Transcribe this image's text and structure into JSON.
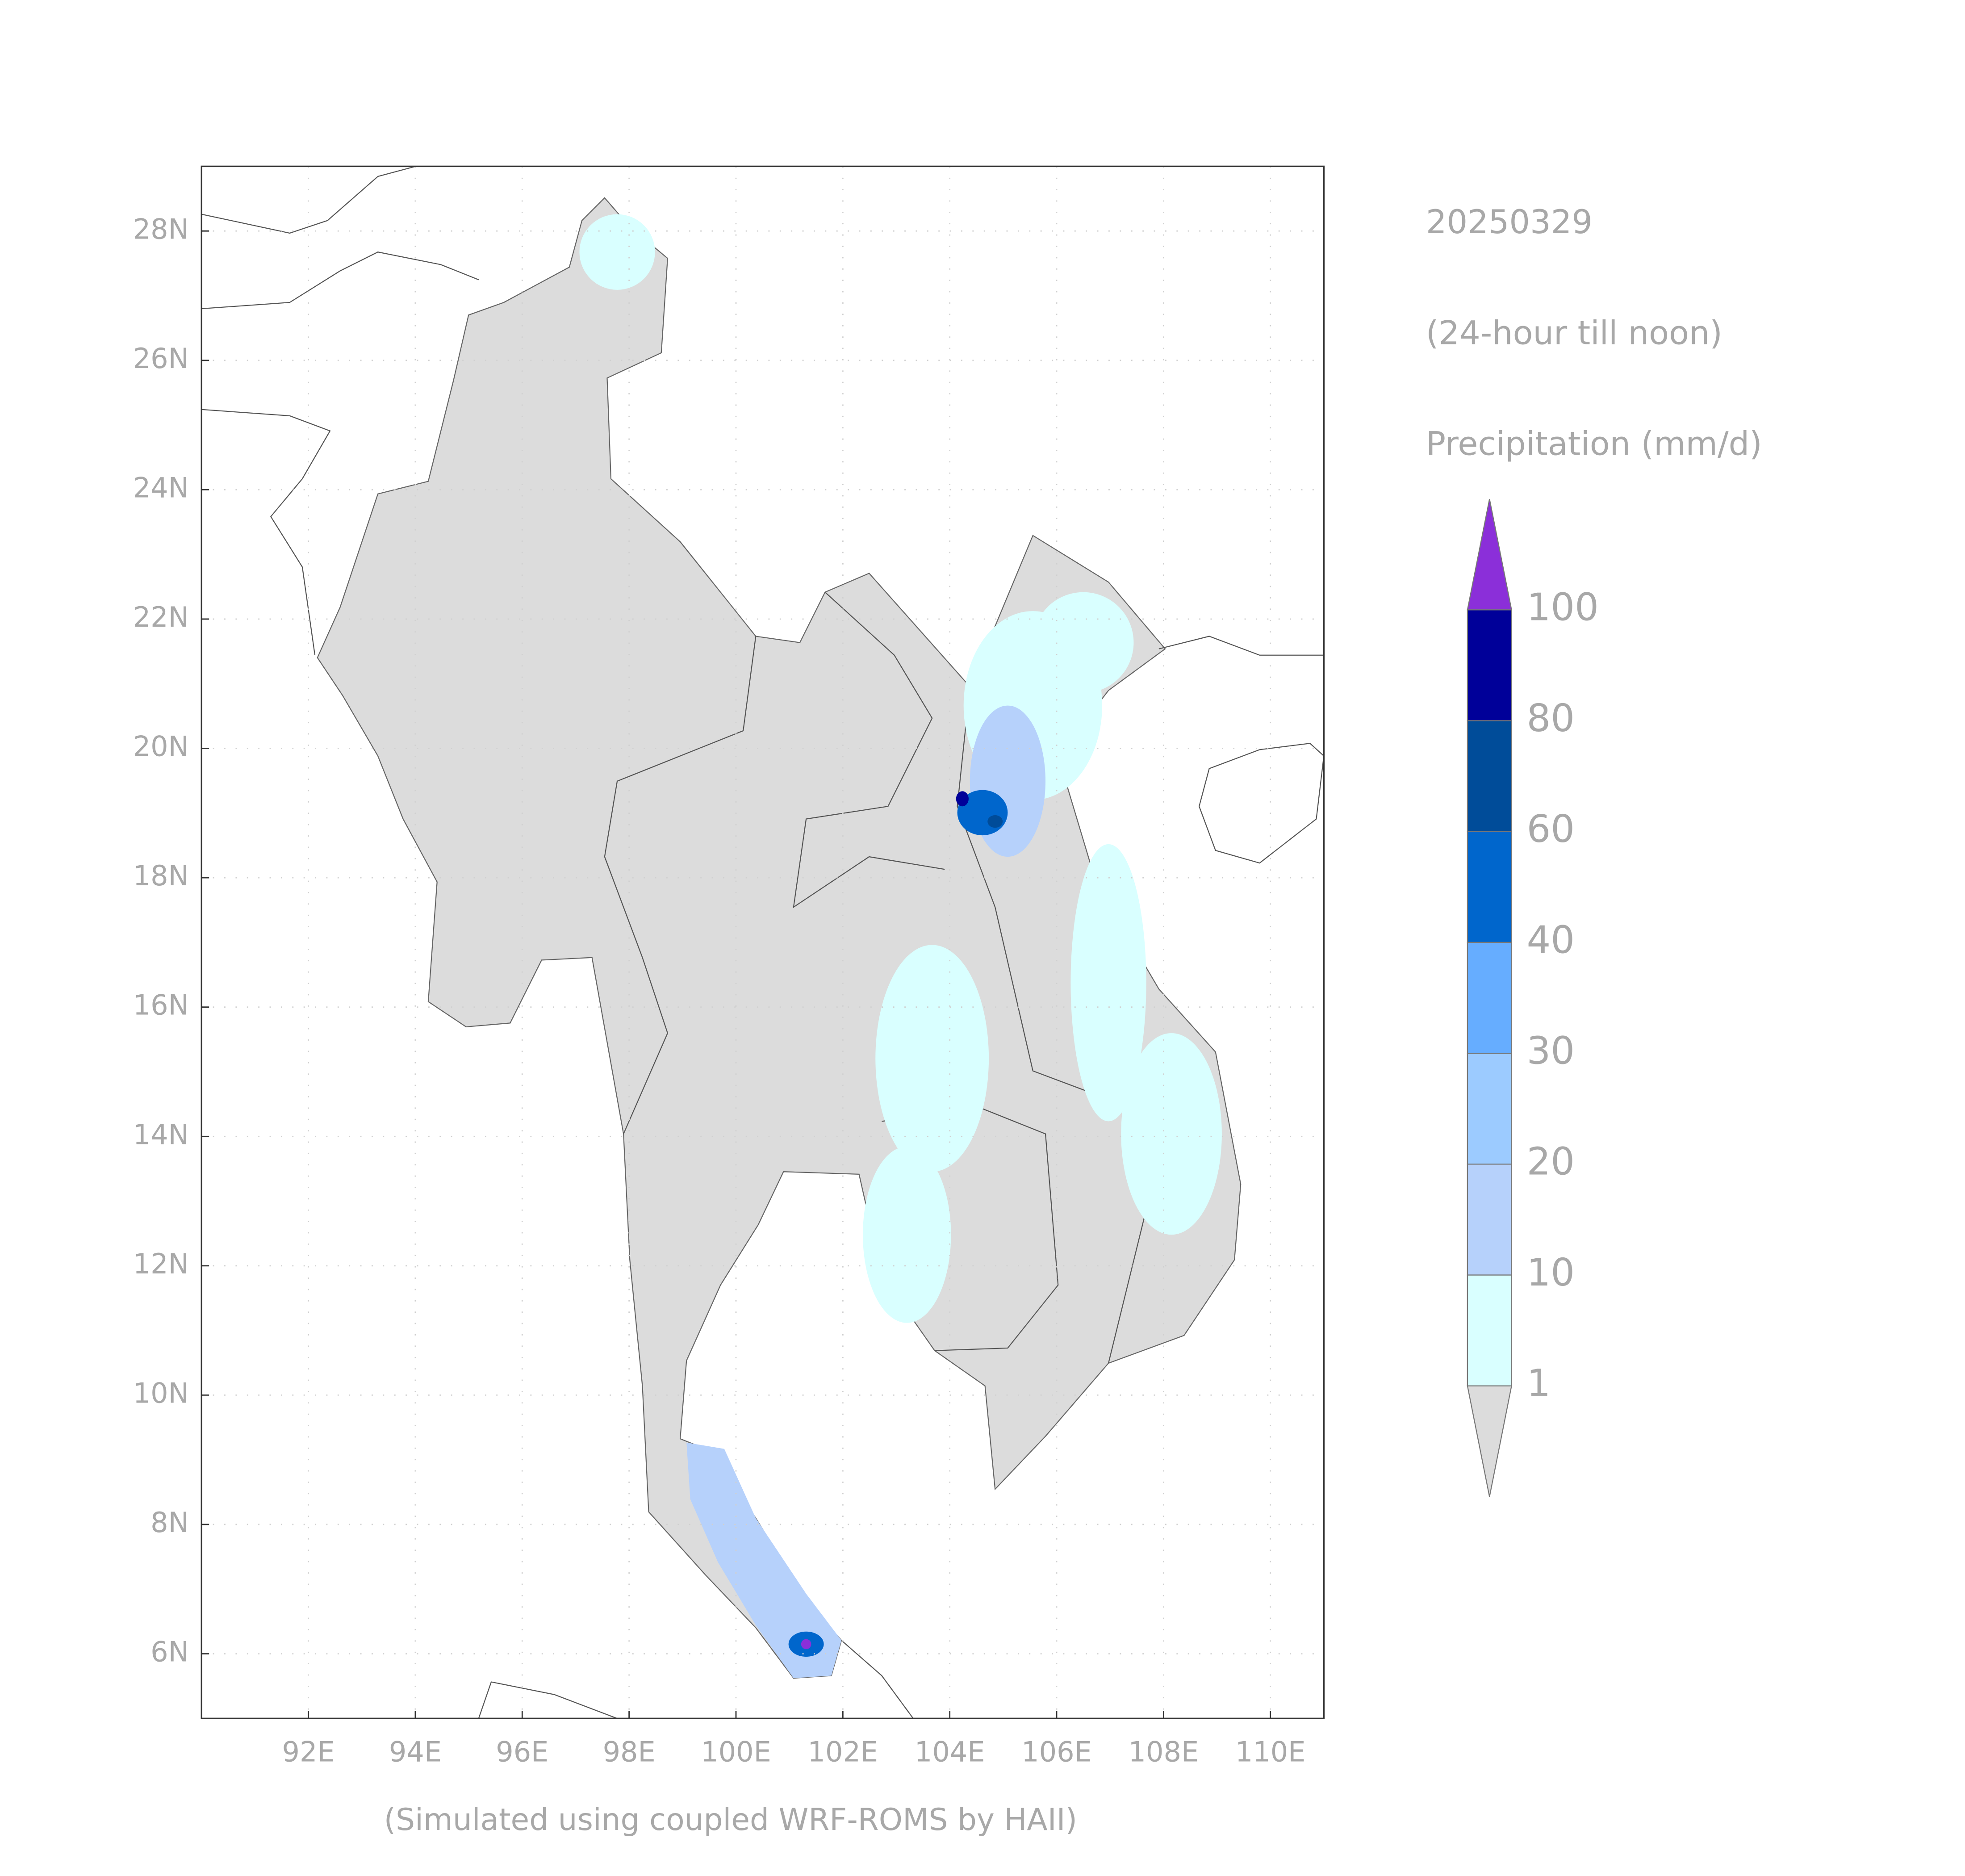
{
  "map": {
    "xlim": [
      90,
      111
    ],
    "ylim": [
      5,
      29
    ],
    "xticks": [
      {
        "value": 92,
        "label": "92E"
      },
      {
        "value": 94,
        "label": "94E"
      },
      {
        "value": 96,
        "label": "96E"
      },
      {
        "value": 98,
        "label": "98E"
      },
      {
        "value": 100,
        "label": "100E"
      },
      {
        "value": 102,
        "label": "102E"
      },
      {
        "value": 104,
        "label": "104E"
      },
      {
        "value": 106,
        "label": "106E"
      },
      {
        "value": 108,
        "label": "108E"
      },
      {
        "value": 110,
        "label": "110E"
      }
    ],
    "yticks": [
      {
        "value": 6,
        "label": "6N"
      },
      {
        "value": 8,
        "label": "8N"
      },
      {
        "value": 10,
        "label": "10N"
      },
      {
        "value": 12,
        "label": "12N"
      },
      {
        "value": 14,
        "label": "14N"
      },
      {
        "value": 16,
        "label": "16N"
      },
      {
        "value": 18,
        "label": "18N"
      },
      {
        "value": 20,
        "label": "20N"
      },
      {
        "value": 22,
        "label": "22N"
      },
      {
        "value": 24,
        "label": "24N"
      },
      {
        "value": 26,
        "label": "26N"
      },
      {
        "value": 28,
        "label": "28N"
      }
    ],
    "grid": true,
    "footer": "(Simulated using coupled WRF-ROMS by HAII)"
  },
  "legend": {
    "lines": [
      "20250329",
      "(24-hour till noon)",
      "Precipitation (mm/d)"
    ],
    "levels": [
      1,
      10,
      20,
      30,
      40,
      60,
      80,
      100
    ],
    "colors": [
      "#dcdcdc",
      "#d9ffff",
      "#b6d1fb",
      "#9ccbff",
      "#66adff",
      "#0066cc",
      "#004c99",
      "#000099",
      "#8b2fd9"
    ]
  }
}
